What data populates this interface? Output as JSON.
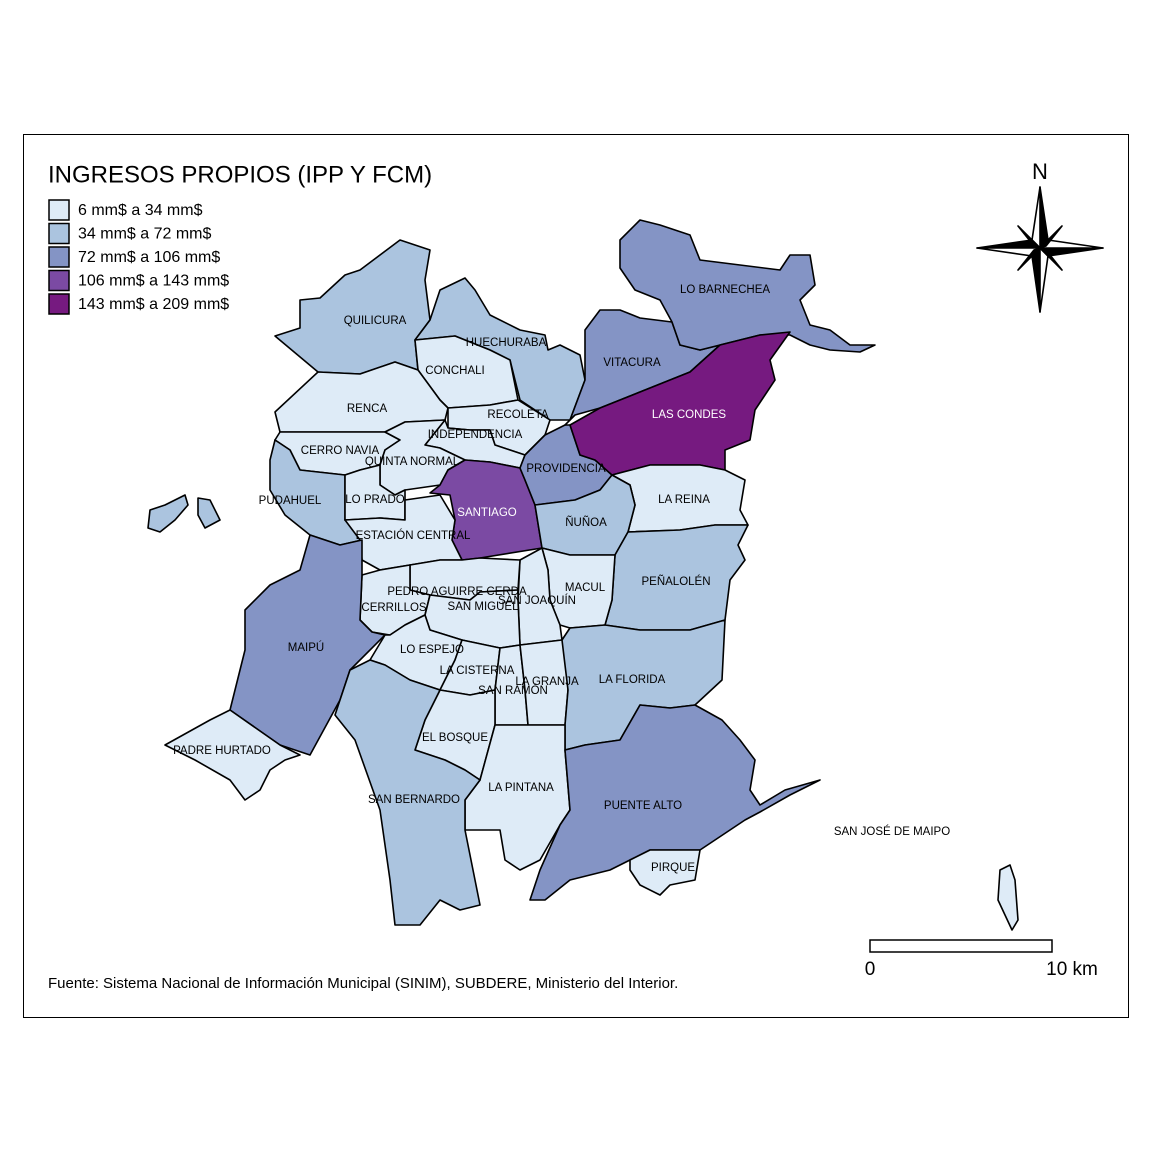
{
  "map": {
    "title": "INGRESOS PROPIOS (IPP Y FCM)",
    "legend": [
      {
        "label": "6 mm$ a 34 mm$",
        "color": "#deebf7"
      },
      {
        "label": "34 mm$ a 72 mm$",
        "color": "#abc4df"
      },
      {
        "label": "72 mm$ a 106 mm$",
        "color": "#8494c5"
      },
      {
        "label": "106 mm$ a 143 mm$",
        "color": "#7b4aa3"
      },
      {
        "label": "143 mm$ a 209 mm$",
        "color": "#761a80"
      }
    ],
    "communes": [
      {
        "name": "QUILICURA",
        "color": "#abc4df"
      },
      {
        "name": "HUECHURABA",
        "color": "#abc4df"
      },
      {
        "name": "CONCHALI",
        "color": "#deebf7"
      },
      {
        "name": "RENCA",
        "color": "#deebf7"
      },
      {
        "name": "RECOLETA",
        "color": "#deebf7"
      },
      {
        "name": "INDEPENDENCIA",
        "color": "#deebf7"
      },
      {
        "name": "CERRO NAVIA",
        "color": "#deebf7"
      },
      {
        "name": "QUINTA NORMAL",
        "color": "#deebf7"
      },
      {
        "name": "PUDAHUEL",
        "color": "#abc4df"
      },
      {
        "name": "LO PRADO",
        "color": "#deebf7"
      },
      {
        "name": "SANTIAGO",
        "color": "#7b4aa3"
      },
      {
        "name": "ESTACIÓN CENTRAL",
        "color": "#deebf7"
      },
      {
        "name": "PROVIDENCIA",
        "color": "#8494c5"
      },
      {
        "name": "VITACURA",
        "color": "#8494c5"
      },
      {
        "name": "LO BARNECHEA",
        "color": "#8494c5"
      },
      {
        "name": "LAS CONDES",
        "color": "#761a80"
      },
      {
        "name": "LA REINA",
        "color": "#deebf7"
      },
      {
        "name": "ÑUÑOA",
        "color": "#abc4df"
      },
      {
        "name": "PEÑALOLÉN",
        "color": "#abc4df"
      },
      {
        "name": "MACUL",
        "color": "#deebf7"
      },
      {
        "name": "SAN JOAQUÍN",
        "color": "#deebf7"
      },
      {
        "name": "PEDRO AGUIRRE CERDA",
        "color": "#deebf7"
      },
      {
        "name": "CERRILLOS",
        "color": "#deebf7"
      },
      {
        "name": "SAN MIGUEL",
        "color": "#deebf7"
      },
      {
        "name": "MAIPÚ",
        "color": "#8494c5"
      },
      {
        "name": "LO ESPEJO",
        "color": "#deebf7"
      },
      {
        "name": "LA CISTERNA",
        "color": "#deebf7"
      },
      {
        "name": "SAN RAMÓN",
        "color": "#deebf7"
      },
      {
        "name": "LA GRANJA",
        "color": "#deebf7"
      },
      {
        "name": "LA FLORIDA",
        "color": "#abc4df"
      },
      {
        "name": "EL BOSQUE",
        "color": "#deebf7"
      },
      {
        "name": "LA PINTANA",
        "color": "#deebf7"
      },
      {
        "name": "PUENTE ALTO",
        "color": "#8494c5"
      },
      {
        "name": "PIRQUE",
        "color": "#deebf7"
      },
      {
        "name": "SAN BERNARDO",
        "color": "#abc4df"
      },
      {
        "name": "PADRE HURTADO",
        "color": "#deebf7"
      },
      {
        "name": "SAN JOSÉ DE MAIPO",
        "color": "#deebf7"
      }
    ],
    "north": "N",
    "scale": {
      "start": "0",
      "end": "10 km"
    },
    "source": "Fuente: Sistema Nacional de Información Municipal (SINIM), SUBDERE, Ministerio del Interior."
  }
}
